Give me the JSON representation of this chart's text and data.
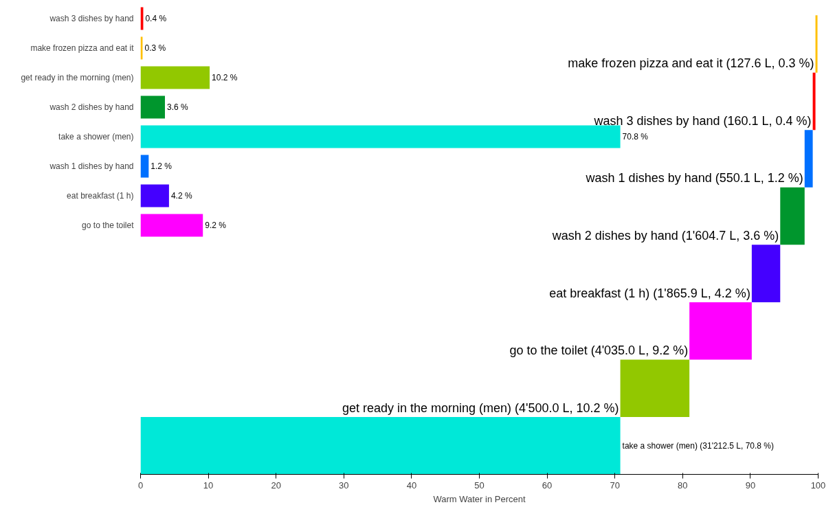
{
  "chart_data": [
    {
      "type": "bar",
      "orientation": "horizontal",
      "tick_labels": "x",
      "xlabel": "Warm Water in Percent",
      "xlim": [
        0,
        100
      ],
      "xticks": [
        0,
        10,
        20,
        30,
        40,
        50,
        60,
        70,
        80,
        90,
        100
      ],
      "grid": false,
      "categories": [
        null,
        null,
        null,
        null,
        null,
        null,
        null,
        null
      ],
      "base": [
        99.6,
        99.2,
        98.0,
        94.4,
        90.2,
        81.0,
        70.8,
        0
      ],
      "values": [
        0.3,
        0.4,
        1.2,
        3.6,
        4.2,
        9.2,
        10.2,
        70.8
      ],
      "colors": [
        "#ffc000",
        "#ff0000",
        "#0070ff",
        "#00962d",
        "#4400ff",
        "#ff00ff",
        "#92c800",
        "#00e8d8"
      ],
      "value_labels": [
        "make frozen pizza and eat it (127.6 L, 0.3 %)",
        "wash 3 dishes by hand (160.1 L, 0.4 %)",
        "wash 1 dishes by hand (550.1 L, 1.2 %)",
        "wash 2 dishes by hand (1'604.7 L, 3.6 %)",
        "eat breakfast (1 h) (1'865.9 L, 4.2 %)",
        "go to the toilet (4'035.0 L, 9.2 %)",
        "get ready in the morning (men) (4'500.0 L, 10.2 %)",
        "take a shower (men) (31'212.5 L, 70.8 %)"
      ]
    },
    {
      "type": "bar",
      "orientation": "horizontal",
      "tick_labels": "y",
      "xlim": [
        0,
        100
      ],
      "categories": [
        "wash 3 dishes by hand",
        "make frozen pizza and eat it",
        "get ready in the morning (men)",
        "wash 2 dishes by hand",
        "take a shower (men)",
        "wash 1 dishes by hand",
        "eat breakfast (1 h)",
        "go to the toilet"
      ],
      "values": [
        0.4,
        0.3,
        10.2,
        3.6,
        70.8,
        1.2,
        4.2,
        9.2
      ],
      "colors": [
        "#ff0000",
        "#ffc000",
        "#92c800",
        "#00962d",
        "#00e8d8",
        "#0070ff",
        "#4400ff",
        "#ff00ff"
      ],
      "value_labels": [
        "0.4 %",
        "0.3 %",
        "10.2 %",
        "3.6 %",
        "70.8 %",
        "1.2 %",
        "4.2 %",
        "9.2 %"
      ]
    }
  ]
}
